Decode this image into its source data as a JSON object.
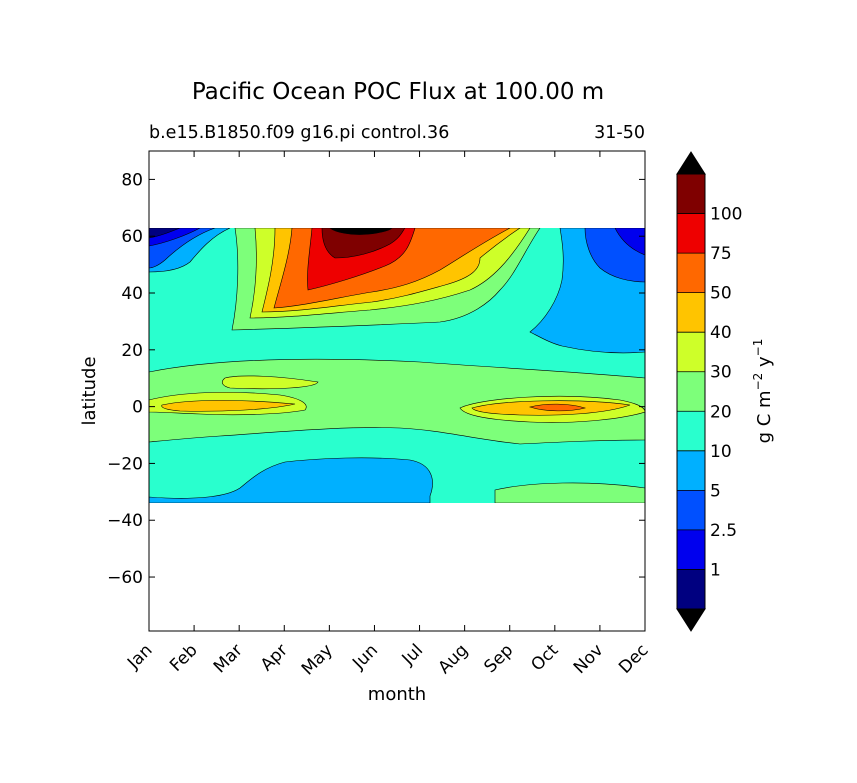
{
  "chart_data": {
    "type": "contour",
    "title": "Pacific Ocean POC Flux at 100.00 m",
    "subtitle_left": "b.e15.B1850.f09 g16.pi control.36",
    "subtitle_right": "31-50",
    "xlabel": "month",
    "ylabel": "latitude",
    "x_ticks": [
      "Jan",
      "Feb",
      "Mar",
      "Apr",
      "May",
      "Jun",
      "Jul",
      "Aug",
      "Sep",
      "Oct",
      "Nov",
      "Dec"
    ],
    "ylim": [
      -79,
      90
    ],
    "y_ticks": [
      80,
      60,
      40,
      20,
      0,
      -20,
      -40,
      -60
    ],
    "data_lat_range": [
      -34,
      63
    ],
    "colorbar": {
      "label": "g C m⁻² y⁻¹",
      "label_main": "g C m",
      "label_exp1": "−2",
      "label_mid": " y",
      "label_exp2": "−1",
      "levels": [
        "1",
        "2.5",
        "5",
        "10",
        "20",
        "30",
        "40",
        "50",
        "75",
        "100"
      ],
      "colors": [
        "#000080",
        "#0000ee",
        "#0050ff",
        "#00b0ff",
        "#29ffce",
        "#7dff7a",
        "#ceff29",
        "#ffc400",
        "#ff6800",
        "#ee0000",
        "#7f0000"
      ],
      "under_color": "#000000",
      "over_color": "#000000",
      "extend": "both"
    },
    "regions": [
      {
        "band": "0-1",
        "month": "Jan",
        "lat": 62
      },
      {
        "band": "2.5-5",
        "month": "Jan",
        "lat": 57
      },
      {
        "band": "5-10",
        "month": "Dec",
        "lat": 45
      },
      {
        "band": "10-20",
        "month": "Feb",
        "lat": 40
      },
      {
        "band": "50-75",
        "month": "May",
        "lat": 40
      },
      {
        "band": "75-100",
        "month": "Jun",
        "lat": 52
      },
      {
        "band": ">100",
        "month": "Jun",
        "lat": 62
      },
      {
        "band": "20-30",
        "month": "Mar",
        "lat": 6
      },
      {
        "band": "40-50",
        "month": "Mar",
        "lat": 0
      },
      {
        "band": "40-50",
        "month": "Oct",
        "lat": 0
      },
      {
        "band": "50-75",
        "month": "Oct",
        "lat": 0
      },
      {
        "band": "5-10",
        "month": "Jun",
        "lat": -27
      },
      {
        "band": "20-30",
        "month": "Nov",
        "lat": -31
      }
    ]
  }
}
